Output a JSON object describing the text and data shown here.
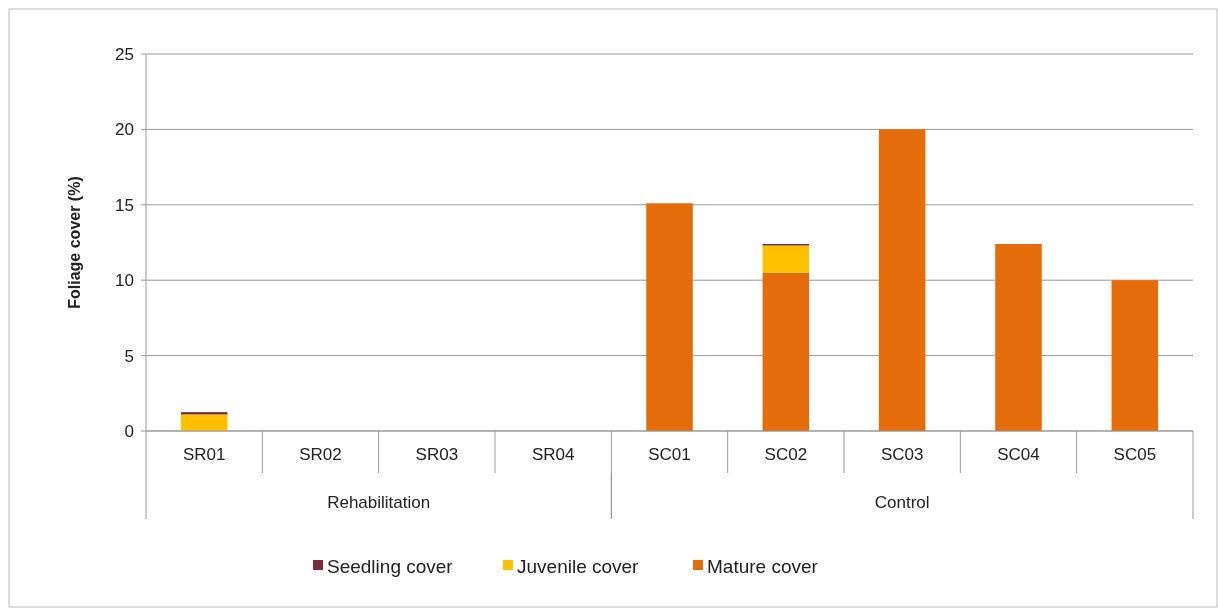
{
  "chart_data": {
    "type": "bar",
    "stacked": true,
    "ylabel": "Foliage cover (%)",
    "categories": [
      "SR01",
      "SR02",
      "SR03",
      "SR04",
      "SC01",
      "SC02",
      "SC03",
      "SC04",
      "SC05"
    ],
    "annotations": [
      "Rehabilitation",
      "Control"
    ],
    "series": [
      {
        "name": "Mature cover",
        "color": "#e46c0a",
        "values": [
          0,
          0,
          0,
          0,
          15.1,
          10.5,
          20,
          12.4,
          10
        ]
      },
      {
        "name": "Juvenile cover",
        "color": "#ffc000",
        "values": [
          1.1,
          0,
          0,
          0,
          0,
          1.8,
          0,
          0,
          0
        ]
      },
      {
        "name": "Seedling cover",
        "color": "#7b2c3b",
        "values": [
          0.15,
          0,
          0,
          0,
          0,
          0.1,
          0,
          0,
          0
        ]
      }
    ],
    "ylim": [
      0,
      25
    ],
    "yticks": [
      0,
      5,
      10,
      15,
      20,
      25
    ],
    "grid": "y",
    "legend": "bottom"
  }
}
